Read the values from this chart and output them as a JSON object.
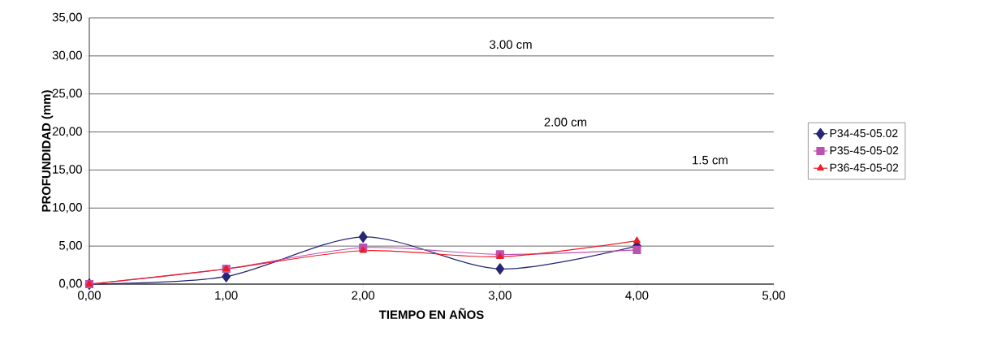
{
  "chart_data": {
    "type": "line",
    "xlabel": "TIEMPO EN AÑOS",
    "ylabel": "PROFUNDIDAD (mm)",
    "annotations": [
      "3.00 cm",
      "2.00 cm",
      "1.5 cm"
    ],
    "x": [
      0,
      1,
      2,
      3,
      4
    ],
    "series": [
      {
        "name": "P34-45-05.02",
        "color": "#262673",
        "marker": "diamond",
        "values": [
          0,
          1.0,
          6.2,
          2.0,
          5.0
        ]
      },
      {
        "name": "P35-45-05-02",
        "color": "#c050b0",
        "marker": "square",
        "values": [
          0,
          2.0,
          4.8,
          3.9,
          4.5
        ]
      },
      {
        "name": "P36-45-05-02",
        "color": "#ee1c24",
        "marker": "triangle",
        "values": [
          0,
          2.0,
          4.4,
          3.6,
          5.7
        ]
      }
    ],
    "xlim": [
      0,
      5
    ],
    "ylim": [
      0,
      35
    ],
    "xticks": [
      {
        "value": 0,
        "label": "0,00"
      },
      {
        "value": 1,
        "label": "1,00"
      },
      {
        "value": 2,
        "label": "2,00"
      },
      {
        "value": 3,
        "label": "3,00"
      },
      {
        "value": 4,
        "label": "4,00"
      },
      {
        "value": 5,
        "label": "5,00"
      }
    ],
    "yticks": [
      {
        "value": 0,
        "label": "0,00"
      },
      {
        "value": 5,
        "label": "5,00"
      },
      {
        "value": 10,
        "label": "10,00"
      },
      {
        "value": 15,
        "label": "15,00"
      },
      {
        "value": 20,
        "label": "20,00"
      },
      {
        "value": 25,
        "label": "25,00"
      },
      {
        "value": 30,
        "label": "30,00"
      },
      {
        "value": 35,
        "label": "35,00"
      }
    ],
    "grid": "y",
    "legend": "right",
    "line_style": "solid"
  }
}
